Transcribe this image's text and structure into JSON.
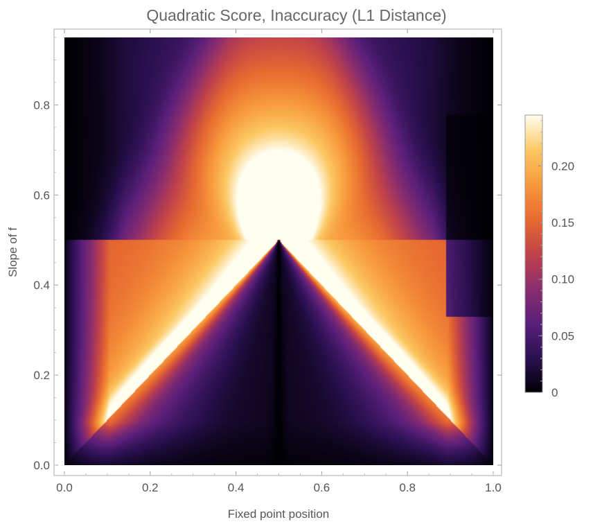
{
  "chart_data": {
    "type": "heatmap",
    "title": "Quadratic Score, Inaccuracy (L1 Distance)",
    "xlabel": "Fixed point position",
    "ylabel": "Slope of f",
    "xlim": [
      0.0,
      1.0
    ],
    "ylim": [
      0.0,
      0.95
    ],
    "x_ticks": [
      {
        "value": 0.0,
        "label": "0.0"
      },
      {
        "value": 0.2,
        "label": "0.2"
      },
      {
        "value": 0.4,
        "label": "0.4"
      },
      {
        "value": 0.6,
        "label": "0.6"
      },
      {
        "value": 0.8,
        "label": "0.8"
      },
      {
        "value": 1.0,
        "label": "1.0"
      }
    ],
    "y_ticks": [
      {
        "value": 0.0,
        "label": "0.0"
      },
      {
        "value": 0.2,
        "label": "0.2"
      },
      {
        "value": 0.4,
        "label": "0.4"
      },
      {
        "value": 0.6,
        "label": "0.6"
      },
      {
        "value": 0.8,
        "label": "0.8"
      }
    ],
    "colorbar": {
      "range": [
        0.0,
        0.245
      ],
      "ticks": [
        {
          "value": 0.0,
          "label": "0"
        },
        {
          "value": 0.05,
          "label": "0.05"
        },
        {
          "value": 0.1,
          "label": "0.10"
        },
        {
          "value": 0.15,
          "label": "0.15"
        },
        {
          "value": 0.2,
          "label": "0.20"
        }
      ],
      "colormap": [
        "#000004",
        "#2a1050",
        "#5a1f7a",
        "#8a2d6e",
        "#c0424a",
        "#e76a30",
        "#f89a3c",
        "#fcc863",
        "#fffef0"
      ]
    },
    "grid": false,
    "legend": "right"
  }
}
